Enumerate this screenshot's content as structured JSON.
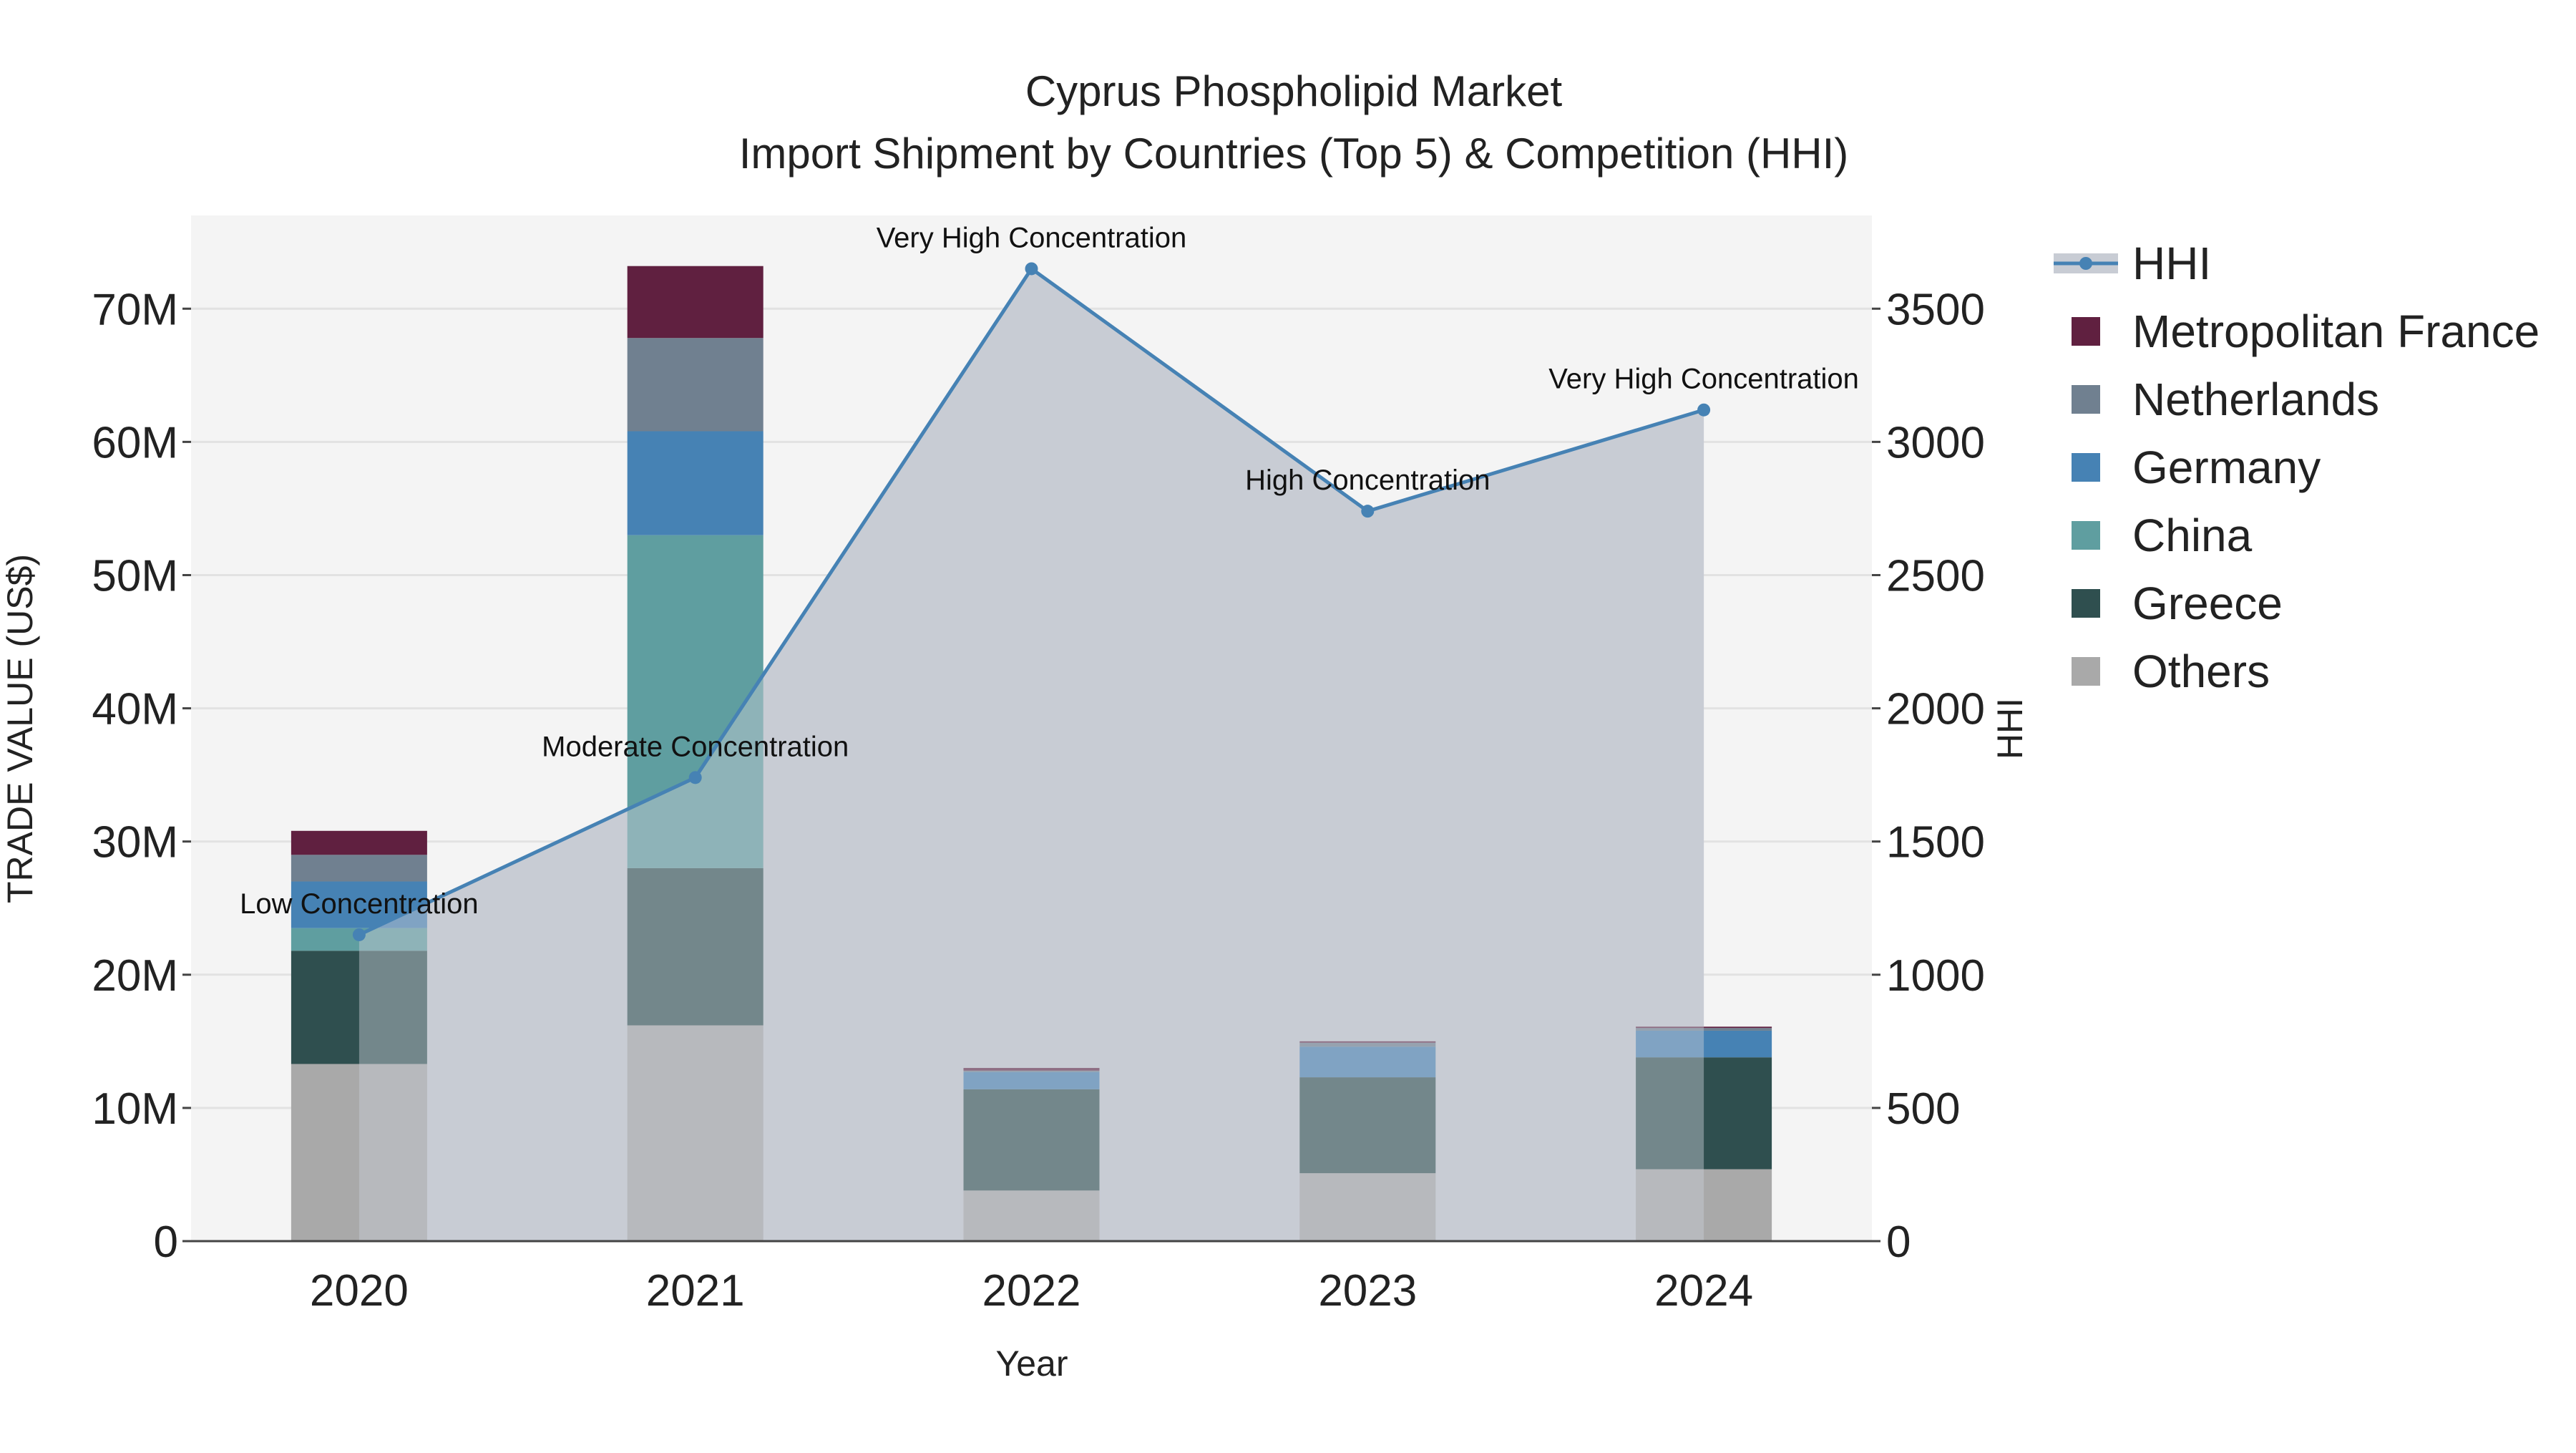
{
  "chart_data": {
    "type": "bar",
    "title": "Cyprus Phospholipid Market",
    "subtitle": "Import Shipment by Countries (Top 5) & Competition (HHI)",
    "xlabel": "Year",
    "ylabel": "TRADE VALUE (US$)",
    "y2label": "HHI",
    "categories": [
      "2020",
      "2021",
      "2022",
      "2023",
      "2024"
    ],
    "ylim": [
      0,
      77000000
    ],
    "y2lim": [
      0,
      3850
    ],
    "yticks": [
      {
        "value": 0,
        "label": "0"
      },
      {
        "value": 10000000,
        "label": "10M"
      },
      {
        "value": 20000000,
        "label": "20M"
      },
      {
        "value": 30000000,
        "label": "30M"
      },
      {
        "value": 40000000,
        "label": "40M"
      },
      {
        "value": 50000000,
        "label": "50M"
      },
      {
        "value": 60000000,
        "label": "60M"
      },
      {
        "value": 70000000,
        "label": "70M"
      }
    ],
    "y2ticks": [
      {
        "value": 0,
        "label": "0"
      },
      {
        "value": 500,
        "label": "500"
      },
      {
        "value": 1000,
        "label": "1000"
      },
      {
        "value": 1500,
        "label": "1500"
      },
      {
        "value": 2000,
        "label": "2000"
      },
      {
        "value": 2500,
        "label": "2500"
      },
      {
        "value": 3000,
        "label": "3000"
      },
      {
        "value": 3500,
        "label": "3500"
      }
    ],
    "grid": true,
    "legend_position": "right",
    "series": [
      {
        "name": "Others",
        "color": "#a9a9a9",
        "values": [
          13300000,
          16200000,
          3800000,
          5100000,
          5400000
        ]
      },
      {
        "name": "Greece",
        "color": "#2f4f4f",
        "values": [
          8500000,
          11800000,
          7600000,
          7200000,
          8400000
        ]
      },
      {
        "name": "China",
        "color": "#5f9ea0",
        "values": [
          1700000,
          25000000,
          0,
          0,
          0
        ]
      },
      {
        "name": "Germany",
        "color": "#4682b4",
        "values": [
          3500000,
          7800000,
          1300000,
          2300000,
          2000000
        ]
      },
      {
        "name": "Netherlands",
        "color": "#708090",
        "values": [
          2000000,
          7000000,
          100000,
          300000,
          200000
        ]
      },
      {
        "name": "Metropolitan France",
        "color": "#602040",
        "values": [
          1800000,
          5400000,
          200000,
          100000,
          100000
        ]
      }
    ],
    "legend_order": [
      "HHI",
      "Metropolitan France",
      "Netherlands",
      "Germany",
      "China",
      "Greece",
      "Others"
    ],
    "hhi": {
      "name": "HHI",
      "color": "#4682b4",
      "values": [
        1150,
        1740,
        3650,
        2740,
        3120
      ],
      "annotations": [
        "Low Concentration",
        "Moderate Concentration",
        "Very High Concentration",
        "High Concentration",
        "Very High Concentration"
      ]
    }
  },
  "colors": {
    "plot_background": "#f4f4f4",
    "grid": "#e2e2e2",
    "area_fill": "#c8ccd4",
    "text": "#222222"
  }
}
